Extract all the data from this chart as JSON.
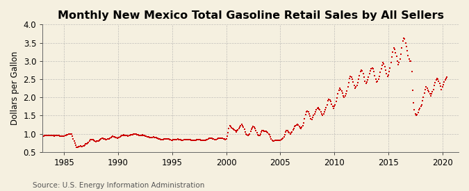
{
  "title": "Monthly New Mexico Total Gasoline Retail Sales by All Sellers",
  "ylabel": "Dollars per Gallon",
  "source": "Source: U.S. Energy Information Administration",
  "xlim": [
    1983.0,
    2021.5
  ],
  "ylim": [
    0.5,
    4.0
  ],
  "yticks": [
    0.5,
    1.0,
    1.5,
    2.0,
    2.5,
    3.0,
    3.5,
    4.0
  ],
  "xticks": [
    1985,
    1990,
    1995,
    2000,
    2005,
    2010,
    2015,
    2020
  ],
  "bg_color": "#F5F0E0",
  "line_color": "#CC0000",
  "title_fontsize": 11.5,
  "label_fontsize": 8.5,
  "tick_fontsize": 8.5,
  "source_fontsize": 7.5,
  "start_year": 1983,
  "start_month": 1,
  "prices": [
    0.93,
    0.94,
    0.95,
    0.96,
    0.96,
    0.95,
    0.96,
    0.96,
    0.96,
    0.95,
    0.95,
    0.95,
    0.95,
    0.94,
    0.95,
    0.96,
    0.96,
    0.95,
    0.95,
    0.94,
    0.94,
    0.93,
    0.93,
    0.93,
    0.94,
    0.95,
    0.96,
    0.97,
    0.98,
    0.99,
    1.0,
    1.0,
    0.99,
    0.93,
    0.85,
    0.8,
    0.74,
    0.68,
    0.63,
    0.63,
    0.64,
    0.65,
    0.66,
    0.65,
    0.65,
    0.66,
    0.67,
    0.68,
    0.72,
    0.73,
    0.74,
    0.77,
    0.8,
    0.83,
    0.84,
    0.84,
    0.83,
    0.82,
    0.8,
    0.79,
    0.8,
    0.8,
    0.8,
    0.82,
    0.84,
    0.86,
    0.87,
    0.87,
    0.86,
    0.85,
    0.84,
    0.84,
    0.85,
    0.85,
    0.86,
    0.88,
    0.9,
    0.92,
    0.93,
    0.92,
    0.91,
    0.9,
    0.89,
    0.88,
    0.89,
    0.9,
    0.91,
    0.93,
    0.95,
    0.96,
    0.97,
    0.96,
    0.96,
    0.95,
    0.95,
    0.94,
    0.95,
    0.96,
    0.97,
    0.98,
    0.98,
    0.99,
    1.0,
    1.0,
    0.99,
    0.98,
    0.97,
    0.96,
    0.96,
    0.96,
    0.96,
    0.97,
    0.96,
    0.95,
    0.94,
    0.93,
    0.92,
    0.92,
    0.91,
    0.9,
    0.9,
    0.9,
    0.9,
    0.91,
    0.9,
    0.9,
    0.89,
    0.88,
    0.87,
    0.86,
    0.85,
    0.84,
    0.84,
    0.84,
    0.84,
    0.85,
    0.85,
    0.86,
    0.86,
    0.86,
    0.85,
    0.84,
    0.83,
    0.82,
    0.82,
    0.83,
    0.83,
    0.84,
    0.84,
    0.84,
    0.85,
    0.84,
    0.84,
    0.83,
    0.82,
    0.82,
    0.82,
    0.83,
    0.83,
    0.83,
    0.84,
    0.84,
    0.84,
    0.83,
    0.83,
    0.82,
    0.82,
    0.82,
    0.82,
    0.82,
    0.82,
    0.83,
    0.83,
    0.83,
    0.84,
    0.83,
    0.82,
    0.82,
    0.82,
    0.82,
    0.82,
    0.82,
    0.83,
    0.84,
    0.85,
    0.87,
    0.88,
    0.88,
    0.87,
    0.86,
    0.85,
    0.84,
    0.84,
    0.84,
    0.85,
    0.87,
    0.87,
    0.88,
    0.88,
    0.87,
    0.87,
    0.86,
    0.85,
    0.84,
    0.86,
    0.93,
    1.02,
    1.14,
    1.22,
    1.2,
    1.17,
    1.14,
    1.13,
    1.1,
    1.08,
    1.05,
    1.08,
    1.1,
    1.14,
    1.18,
    1.22,
    1.25,
    1.22,
    1.18,
    1.12,
    1.05,
    1.0,
    0.98,
    0.96,
    0.97,
    1.0,
    1.06,
    1.12,
    1.17,
    1.2,
    1.19,
    1.15,
    1.09,
    1.02,
    0.97,
    0.95,
    0.95,
    1.0,
    1.05,
    1.09,
    1.08,
    1.07,
    1.07,
    1.06,
    1.04,
    1.02,
    1.0,
    0.97,
    0.92,
    0.86,
    0.82,
    0.8,
    0.8,
    0.81,
    0.82,
    0.82,
    0.82,
    0.82,
    0.82,
    0.82,
    0.83,
    0.85,
    0.88,
    0.92,
    0.98,
    1.05,
    1.08,
    1.08,
    1.05,
    1.02,
    1.0,
    1.02,
    1.05,
    1.1,
    1.15,
    1.2,
    1.22,
    1.24,
    1.25,
    1.23,
    1.2,
    1.17,
    1.15,
    1.18,
    1.22,
    1.3,
    1.42,
    1.52,
    1.6,
    1.62,
    1.6,
    1.55,
    1.48,
    1.42,
    1.4,
    1.45,
    1.5,
    1.55,
    1.6,
    1.65,
    1.7,
    1.72,
    1.68,
    1.65,
    1.6,
    1.55,
    1.5,
    1.55,
    1.6,
    1.65,
    1.72,
    1.8,
    1.9,
    1.95,
    1.92,
    1.88,
    1.82,
    1.75,
    1.7,
    1.75,
    1.8,
    1.88,
    1.98,
    2.1,
    2.2,
    2.25,
    2.22,
    2.18,
    2.12,
    2.05,
    2.0,
    2.05,
    2.1,
    2.18,
    2.28,
    2.4,
    2.52,
    2.58,
    2.55,
    2.5,
    2.42,
    2.32,
    2.25,
    2.28,
    2.32,
    2.4,
    2.5,
    2.6,
    2.7,
    2.75,
    2.72,
    2.65,
    2.55,
    2.45,
    2.38,
    2.42,
    2.48,
    2.55,
    2.65,
    2.72,
    2.78,
    2.8,
    2.78,
    2.7,
    2.6,
    2.5,
    2.42,
    2.45,
    2.5,
    2.58,
    2.68,
    2.78,
    2.88,
    2.95,
    2.92,
    2.85,
    2.75,
    2.65,
    2.58,
    2.62,
    2.7,
    2.8,
    2.95,
    3.1,
    3.25,
    3.35,
    3.32,
    3.22,
    3.12,
    3.0,
    2.9,
    2.95,
    3.05,
    3.18,
    3.35,
    3.55,
    3.62,
    3.6,
    3.5,
    3.4,
    3.28,
    3.15,
    3.05,
    3.0,
    3.0,
    2.7,
    2.2,
    1.85,
    1.65,
    1.55,
    1.5,
    1.52,
    1.58,
    1.65,
    1.7,
    1.75,
    1.8,
    1.9,
    2.0,
    2.12,
    2.22,
    2.28,
    2.25,
    2.2,
    2.15,
    2.1,
    2.05,
    2.1,
    2.15,
    2.22,
    2.32,
    2.4,
    2.48,
    2.52,
    2.5,
    2.45,
    2.38,
    2.3,
    2.22,
    2.28,
    2.35,
    2.42,
    2.48,
    2.52,
    2.55
  ]
}
